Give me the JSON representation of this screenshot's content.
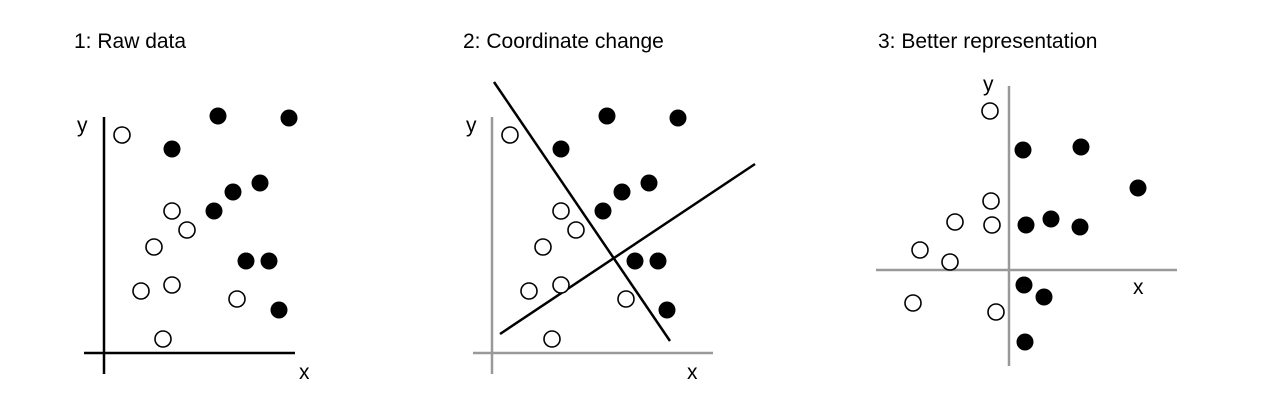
{
  "panels": [
    {
      "title": "1: Raw data",
      "xlabel": "x",
      "ylabel": "y",
      "axis_color": "#000000",
      "open_points": [
        [
          122,
          135
        ],
        [
          172,
          211
        ],
        [
          187,
          230
        ],
        [
          154,
          247
        ],
        [
          141,
          291
        ],
        [
          172,
          285
        ],
        [
          237,
          299
        ],
        [
          163,
          339
        ]
      ],
      "filled_points": [
        [
          218,
          116
        ],
        [
          289,
          118
        ],
        [
          172,
          149
        ],
        [
          260,
          183
        ],
        [
          233,
          192
        ],
        [
          214,
          211
        ],
        [
          246,
          261
        ],
        [
          269,
          261
        ],
        [
          279,
          310
        ]
      ]
    },
    {
      "title": "2: Coordinate change",
      "xlabel": "x",
      "ylabel": "y",
      "axis_color": "#999999",
      "open_points": [
        [
          510,
          135
        ],
        [
          561,
          211
        ],
        [
          576,
          230
        ],
        [
          543,
          247
        ],
        [
          529,
          291
        ],
        [
          561,
          285
        ],
        [
          626,
          299
        ],
        [
          552,
          339
        ]
      ],
      "filled_points": [
        [
          607,
          116
        ],
        [
          678,
          118
        ],
        [
          561,
          149
        ],
        [
          649,
          183
        ],
        [
          622,
          192
        ],
        [
          603,
          211
        ],
        [
          635,
          261
        ],
        [
          658,
          261
        ],
        [
          667,
          310
        ]
      ]
    },
    {
      "title": "3: Better representation",
      "xlabel": "x",
      "ylabel": "y",
      "axis_color": "#999999",
      "open_points": [
        [
          990,
          111
        ],
        [
          991,
          201
        ],
        [
          955,
          222
        ],
        [
          992,
          225
        ],
        [
          920,
          250
        ],
        [
          950,
          262
        ],
        [
          913,
          303
        ],
        [
          996,
          312
        ]
      ],
      "filled_points": [
        [
          1081,
          147
        ],
        [
          1023,
          150
        ],
        [
          1138,
          188
        ],
        [
          1051,
          219
        ],
        [
          1026,
          225
        ],
        [
          1080,
          227
        ],
        [
          1024,
          285
        ],
        [
          1044,
          297
        ],
        [
          1025,
          342
        ]
      ]
    }
  ],
  "colors": {
    "ink": "#000000",
    "axis_gray": "#999999"
  }
}
